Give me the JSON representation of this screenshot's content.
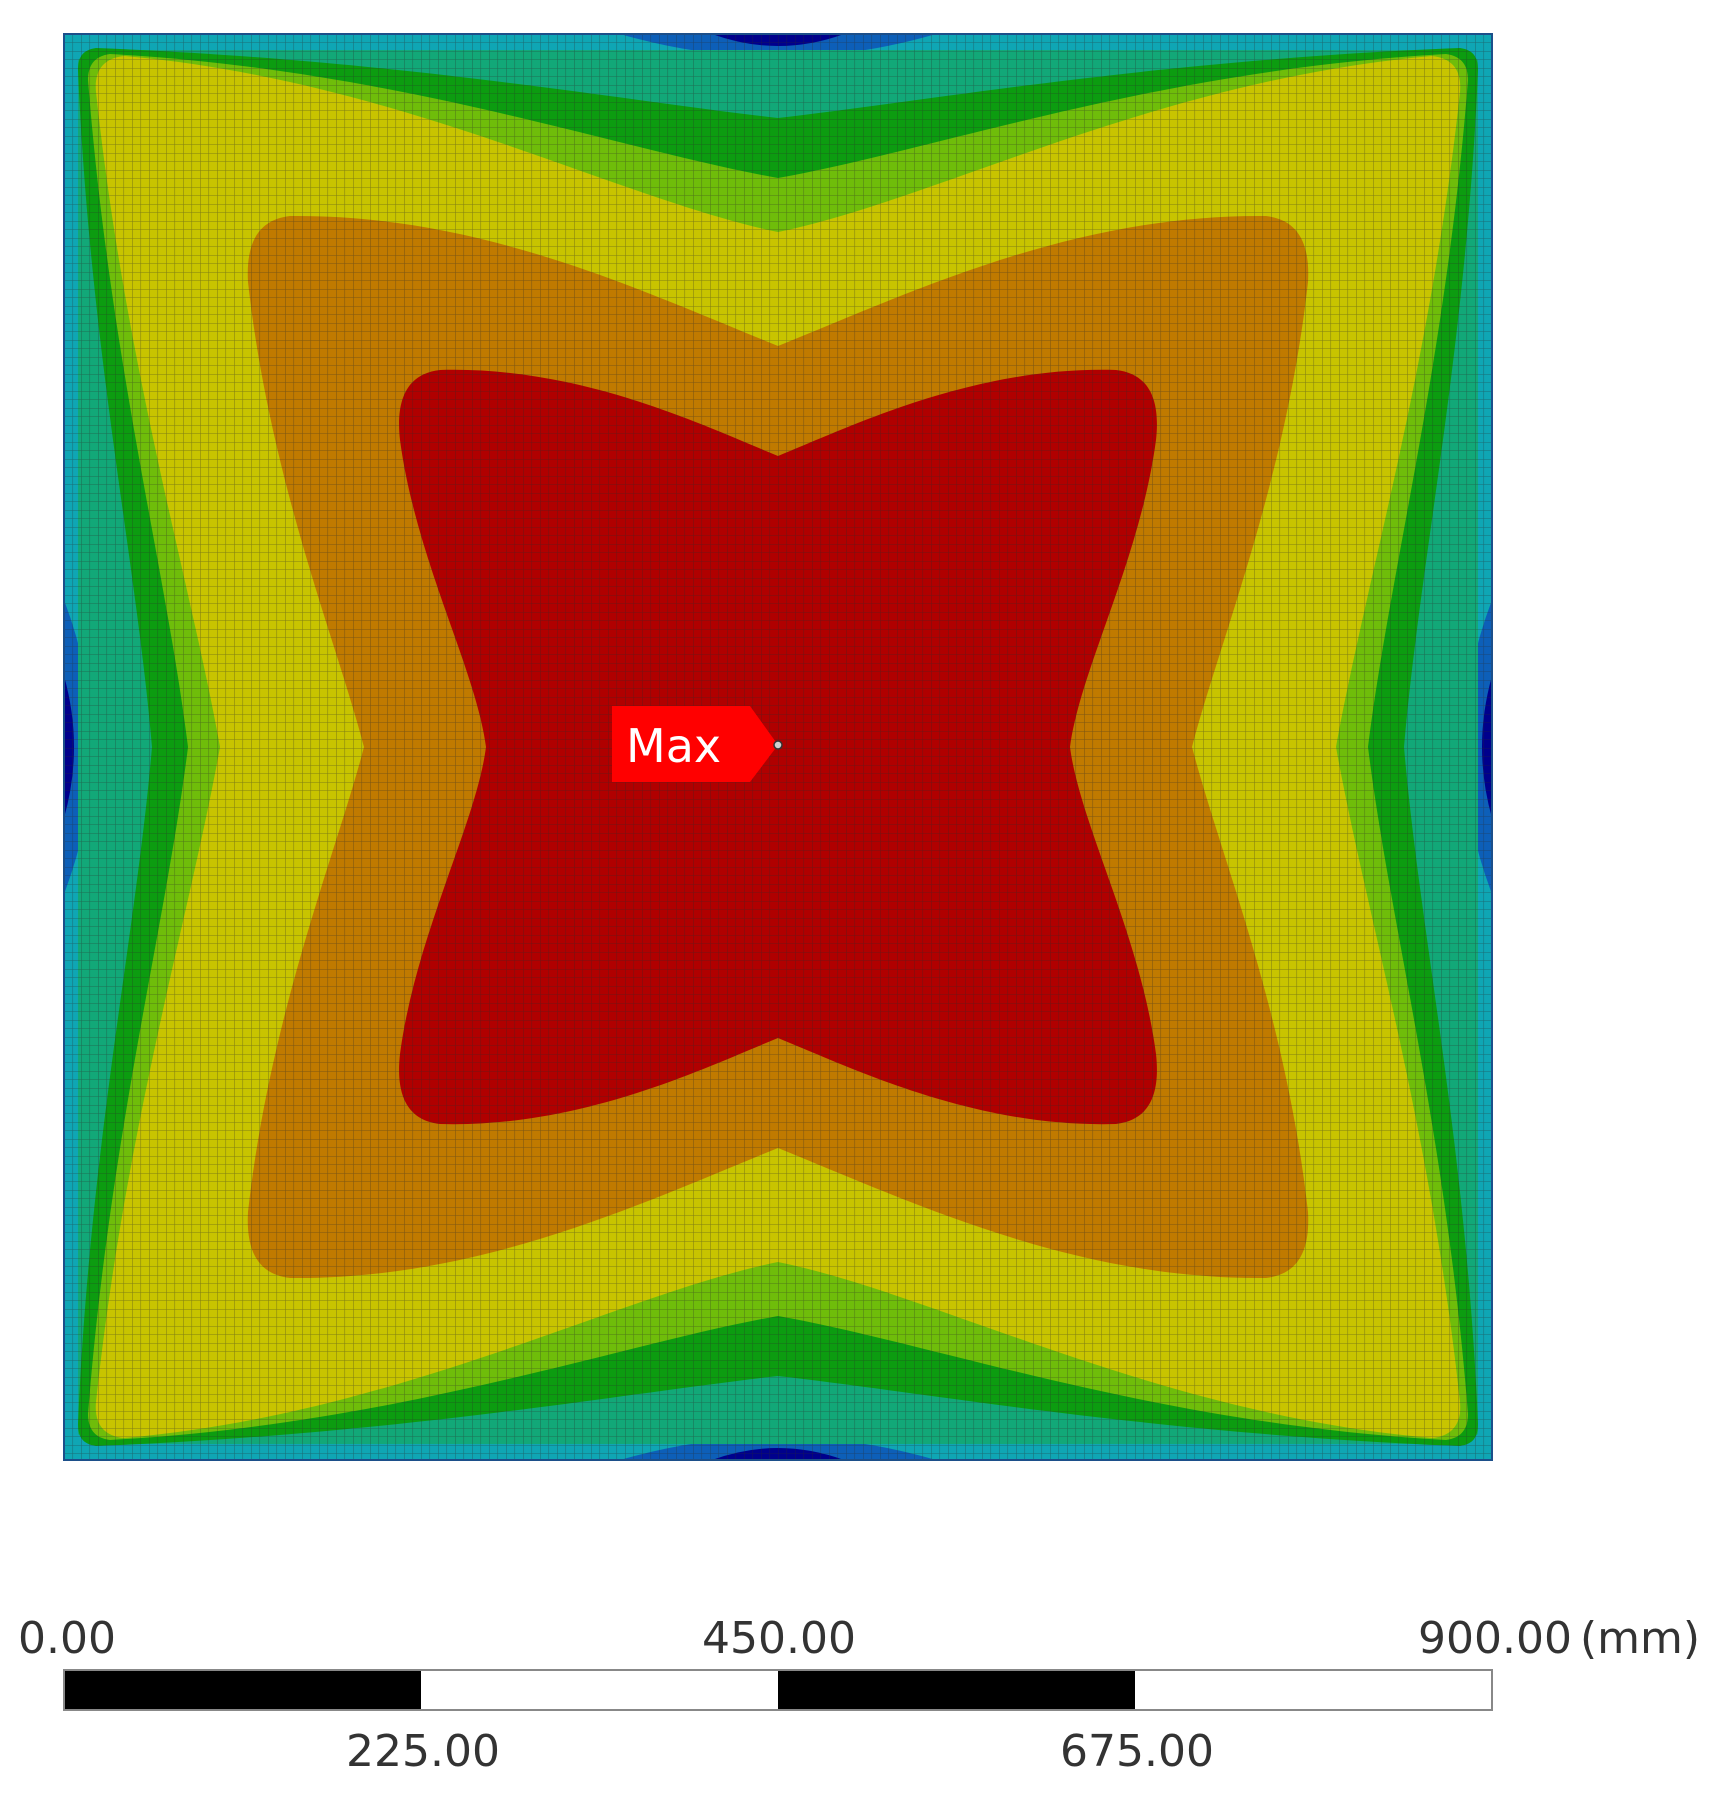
{
  "probe": {
    "label": "Max"
  },
  "scale_bar": {
    "unit": "(mm)",
    "top_labels": [
      "0.00",
      "450.00",
      "900.00"
    ],
    "bottom_labels": [
      "225.00",
      "675.00"
    ],
    "segment_fills": [
      "#000000",
      "#ffffff",
      "#000000",
      "#ffffff"
    ]
  },
  "contour": {
    "band_colors": [
      "#00008c",
      "#0d5fb8",
      "#0fa6b4",
      "#12a878",
      "#0c9c10",
      "#6fbd0a",
      "#c8c400",
      "#c07a00",
      "#b00000"
    ],
    "mesh_color": "#2a2a2a"
  }
}
